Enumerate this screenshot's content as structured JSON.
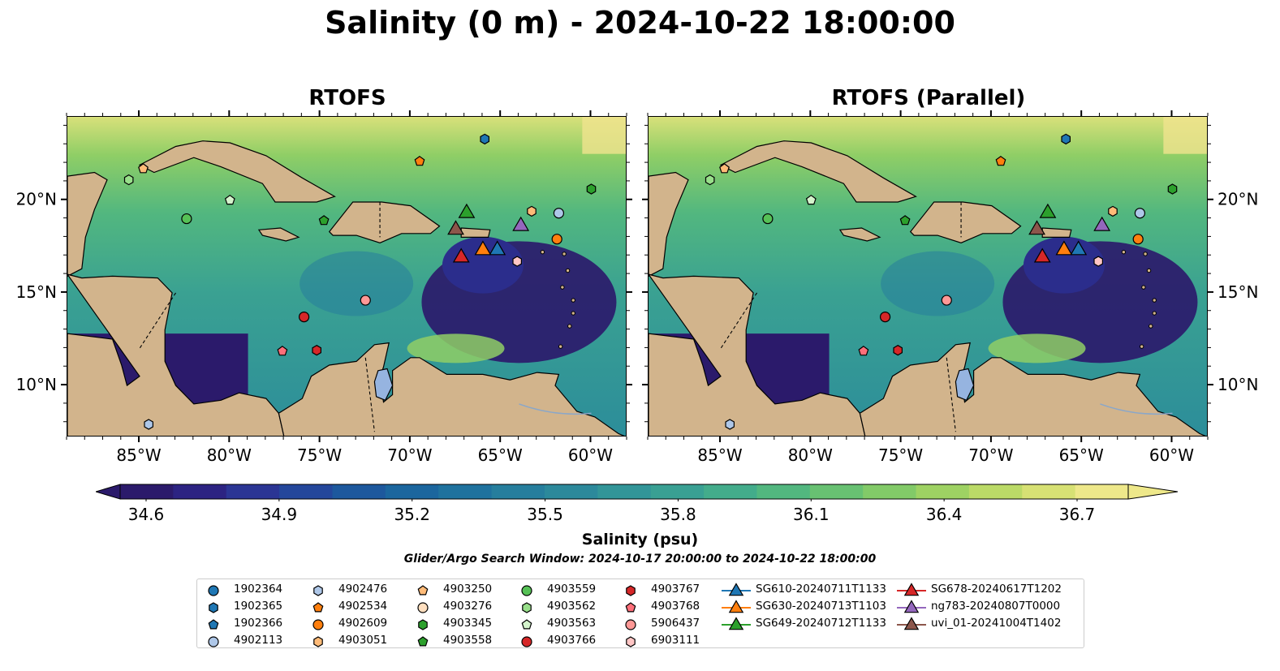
{
  "suptitle": "Salinity (0 m) - 2024-10-22 18:00:00",
  "panels": [
    {
      "title": "RTOFS"
    },
    {
      "title": "RTOFS (Parallel)"
    }
  ],
  "lon_ticks": [
    "85°W",
    "80°W",
    "75°W",
    "70°W",
    "65°W",
    "60°W"
  ],
  "lat_ticks": [
    "20°N",
    "15°N",
    "10°N"
  ],
  "colorbar": {
    "label": "Salinity (psu)",
    "ticks": [
      "34.6",
      "34.9",
      "35.2",
      "35.5",
      "35.8",
      "36.1",
      "36.4",
      "36.7"
    ],
    "colors": [
      "#2b1a6b",
      "#2c2382",
      "#2b3594",
      "#24479b",
      "#1d589d",
      "#1b669e",
      "#1f729e",
      "#267e9d",
      "#2c899b",
      "#329598",
      "#39a093",
      "#43ac8b",
      "#52b77f",
      "#68c172",
      "#82ca68",
      "#9ed263",
      "#bbda67",
      "#d7e174",
      "#eee88a"
    ]
  },
  "search_window": "Glider/Argo Search Window: 2024-10-17 20:00:00 to 2024-10-22 18:00:00",
  "chart_data": {
    "type": "scatter",
    "title": "Salinity (0 m) - 2024-10-22 18:00:00",
    "subplots": [
      "RTOFS",
      "RTOFS (Parallel)"
    ],
    "xlim": [
      -89,
      -58
    ],
    "ylim": [
      7.2,
      24.5
    ],
    "xlabel": "",
    "ylabel": "",
    "colorbar_range": [
      34.6,
      36.7
    ],
    "colorbar_label": "Salinity (psu)",
    "series": [
      {
        "name": "1902364",
        "marker": "circle",
        "color": "#1f77b4",
        "x": [],
        "y": []
      },
      {
        "name": "1902365",
        "marker": "hexagon",
        "color": "#1f77b4",
        "x": [
          -65.9
        ],
        "y": [
          23.3
        ]
      },
      {
        "name": "1902366",
        "marker": "pentagon",
        "color": "#1f77b4",
        "x": [],
        "y": []
      },
      {
        "name": "4902113",
        "marker": "circle",
        "color": "#aec7e8",
        "x": [
          -61.8
        ],
        "y": [
          19.3
        ]
      },
      {
        "name": "4902476",
        "marker": "hexagon",
        "color": "#aec7e8",
        "x": [
          -84.5
        ],
        "y": [
          7.9
        ]
      },
      {
        "name": "4902534",
        "marker": "pentagon",
        "color": "#ff7f0e",
        "x": [
          -69.5
        ],
        "y": [
          22.1
        ]
      },
      {
        "name": "4902609",
        "marker": "circle",
        "color": "#ff7f0e",
        "x": [
          -61.9
        ],
        "y": [
          17.9
        ]
      },
      {
        "name": "4903051",
        "marker": "hexagon",
        "color": "#ffbb78",
        "x": [
          -63.3
        ],
        "y": [
          19.4
        ]
      },
      {
        "name": "4903250",
        "marker": "pentagon",
        "color": "#ffbb78",
        "x": [
          -84.8
        ],
        "y": [
          21.7
        ]
      },
      {
        "name": "4903276",
        "marker": "circle",
        "color": "#ffdfbf",
        "x": [],
        "y": []
      },
      {
        "name": "4903345",
        "marker": "hexagon",
        "color": "#2ca02c",
        "x": [
          -60.0
        ],
        "y": [
          20.6
        ]
      },
      {
        "name": "4903558",
        "marker": "pentagon",
        "color": "#2ca02c",
        "x": [
          -74.8
        ],
        "y": [
          18.9
        ]
      },
      {
        "name": "4903559",
        "marker": "circle",
        "color": "#56c156",
        "x": [
          -82.4
        ],
        "y": [
          19.0
        ]
      },
      {
        "name": "4903562",
        "marker": "hexagon",
        "color": "#98df8a",
        "x": [
          -85.6
        ],
        "y": [
          21.1
        ]
      },
      {
        "name": "4903563",
        "marker": "pentagon",
        "color": "#d4f4cc",
        "x": [
          -80.0
        ],
        "y": [
          20.0
        ]
      },
      {
        "name": "4903766",
        "marker": "circle",
        "color": "#d62728",
        "x": [
          -75.9
        ],
        "y": [
          13.7
        ]
      },
      {
        "name": "4903767",
        "marker": "hexagon",
        "color": "#d62728",
        "x": [
          -75.2
        ],
        "y": [
          11.9
        ]
      },
      {
        "name": "4903768",
        "marker": "pentagon",
        "color": "#ff6f7a",
        "x": [
          -77.1
        ],
        "y": [
          11.85
        ]
      },
      {
        "name": "5906437",
        "marker": "circle",
        "color": "#ff9896",
        "x": [
          -72.5
        ],
        "y": [
          14.6
        ]
      },
      {
        "name": "6903111",
        "marker": "hexagon",
        "color": "#ffc6c5",
        "x": [
          -64.1
        ],
        "y": [
          16.7
        ]
      },
      {
        "name": "SG610-20240711T1133",
        "marker": "triangle",
        "color": "#1f77b4",
        "x": [
          -65.2
        ],
        "y": [
          17.3
        ]
      },
      {
        "name": "SG630-20240713T1103",
        "marker": "triangle",
        "color": "#ff7f0e",
        "x": [
          -66.0
        ],
        "y": [
          17.3
        ]
      },
      {
        "name": "SG649-20240712T1133",
        "marker": "triangle",
        "color": "#2ca02c",
        "x": [
          -66.9
        ],
        "y": [
          19.3
        ]
      },
      {
        "name": "SG678-20240617T1202",
        "marker": "triangle",
        "color": "#d62728",
        "x": [
          -67.2
        ],
        "y": [
          16.9
        ]
      },
      {
        "name": "ng783-20240807T0000",
        "marker": "triangle",
        "color": "#9467bd",
        "x": [
          -63.9
        ],
        "y": [
          18.6
        ]
      },
      {
        "name": "uvi_01-20241004T1402",
        "marker": "triangle",
        "color": "#8c564b",
        "x": [
          -67.5
        ],
        "y": [
          18.4
        ]
      }
    ]
  }
}
